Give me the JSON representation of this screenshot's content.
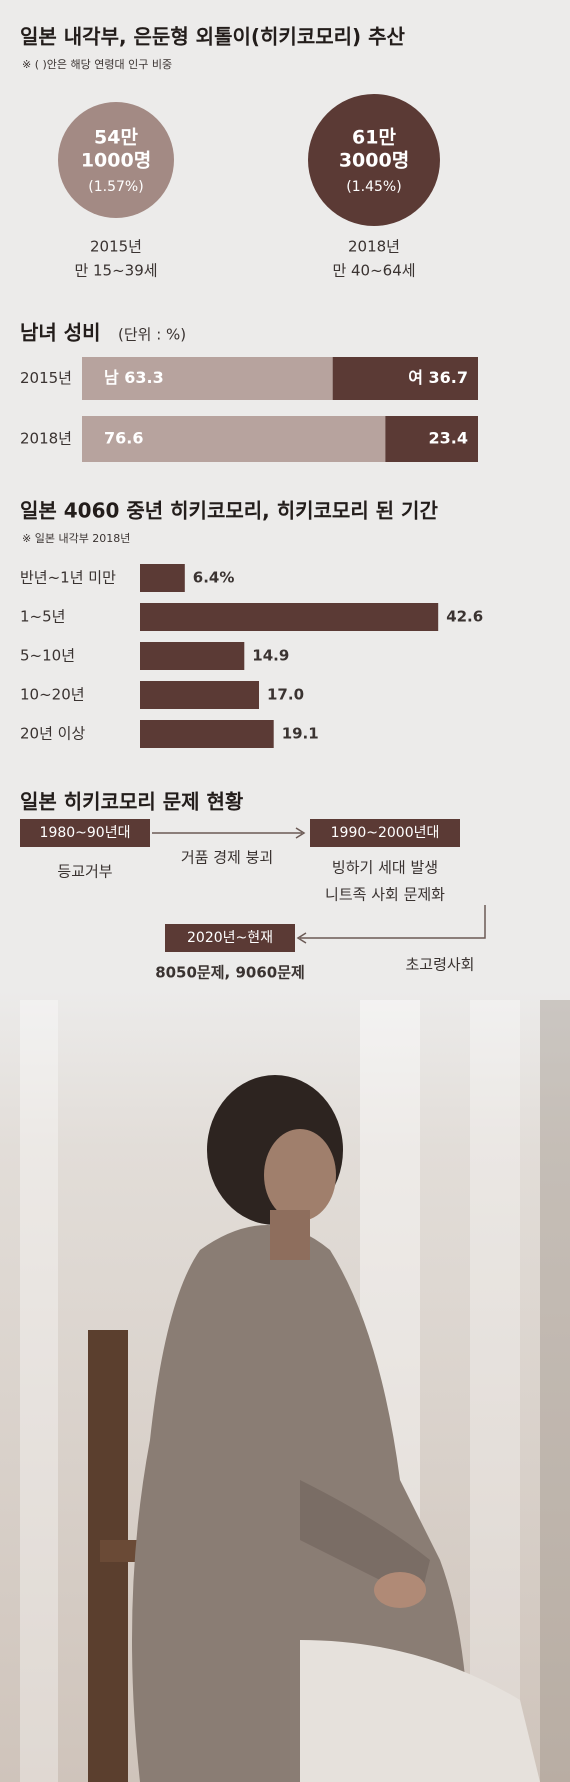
{
  "estimate": {
    "title": "일본 내각부, 은둔형 외톨이(히키코모리) 추산",
    "note": "※ ( )안은 해당 연령대 인구 비중",
    "items": [
      {
        "lines": [
          "54만",
          "1000명"
        ],
        "share": "(1.57%)",
        "year": "2015년",
        "age": "만 15~39세"
      },
      {
        "lines": [
          "61만",
          "3000명"
        ],
        "share": "(1.45%)",
        "year": "2018년",
        "age": "만 40~64세"
      }
    ]
  },
  "sex_ratio": {
    "title": "남녀 성비",
    "unit": "(단위 : %)",
    "rows": [
      {
        "year": "2015년",
        "values": [
          63.3,
          36.7
        ],
        "value_labels": [
          "남 63.3",
          "여 36.7"
        ]
      },
      {
        "year": "2018년",
        "values": [
          76.6,
          23.4
        ]
      }
    ]
  },
  "duration": {
    "title": "일본 4060 중년 히키코모리, 히키코모리 된 기간",
    "note": "※ 일본 내각부 2018년",
    "categories": [
      "반년~1년 미만",
      "1~5년",
      "5~10년",
      "10~20년",
      "20년 이상"
    ],
    "values": [
      6.4,
      42.6,
      14.9,
      17.0,
      19.1
    ],
    "value_labels": [
      "6.4%",
      "42.6",
      "14.9",
      "17.0",
      "19.1"
    ]
  },
  "timeline": {
    "title": "일본 히키코모리 문제 현황",
    "periods": [
      {
        "label": "1980~90년대",
        "texts": [
          "등교거부"
        ]
      },
      {
        "label": "1990~2000년대",
        "texts": [
          "빙하기 세대 발생",
          "니트족 사회 문제화"
        ]
      },
      {
        "label": "2020년~현재",
        "texts": [
          "8050문제, 9060문제"
        ]
      }
    ],
    "transitions": [
      "거품 경제 붕괴",
      "초고령사회"
    ]
  }
}
